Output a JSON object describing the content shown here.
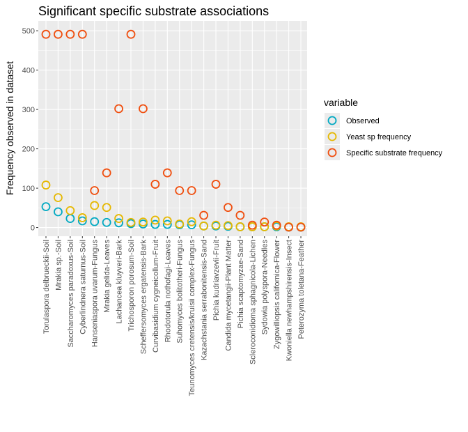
{
  "chart_data": {
    "type": "scatter",
    "title": "Significant specific substrate associations",
    "xlabel": "",
    "ylabel": "Frequency observed in dataset",
    "ylim": [
      -22,
      525
    ],
    "yticks": [
      0,
      100,
      200,
      300,
      400,
      500
    ],
    "grid": true,
    "legend_position": "right",
    "legend_title": "variable",
    "categories": [
      "Torulaspora delbrueckii-Soil",
      "Mrakia sp.-Soil",
      "Saccharomyces paradoxus-Soil",
      "Cyberlindnera saturnus-Soil",
      "Hanseniaspora uvarum-Fungus",
      "Mrakia gelida-Leaves",
      "Lachancea kluyveri-Bark",
      "Trichosporon porosum-Soil",
      "Scheffersomyces ergatensis-Bark",
      "Curvibasidium cygneicollum-Fruit",
      "Rhodotorula nothofagi-Leaves",
      "Suhomyces bolitotheri-Fungus",
      "Teunomyces cretensis/kruisii complex-Fungus",
      "Kazachstania serrabonitensis-Sand",
      "Pichia kudriavzevii-Fruit",
      "Candida mycetangii-Plant Matter",
      "Pichia scaptomyzae-Sand",
      "Scleroconidioma sphagnicola-Lichen",
      "Sydowia polyspora-Needles",
      "Zygowilliopsis californica-Flower",
      "Kwoniella newhampshirensis-Insect",
      "Peterozyma toletana-Feather"
    ],
    "series": [
      {
        "name": "Observed",
        "color": "#00a9c2",
        "values": [
          53,
          40,
          23,
          17,
          15,
          13,
          12,
          10,
          9,
          8,
          8,
          7,
          7,
          4,
          4,
          3,
          2,
          2,
          2,
          2,
          1,
          1
        ]
      },
      {
        "name": "Yeast sp frequency",
        "color": "#e6b800",
        "values": [
          108,
          76,
          43,
          25,
          56,
          51,
          23,
          13,
          14,
          19,
          17,
          9,
          15,
          4,
          6,
          5,
          2,
          2,
          2,
          4,
          2,
          2
        ]
      },
      {
        "name": "Specific substrate frequency",
        "color": "#f04e0e",
        "values": [
          491,
          491,
          491,
          491,
          94,
          139,
          302,
          491,
          302,
          110,
          139,
          94,
          94,
          31,
          110,
          51,
          31,
          6,
          14,
          6,
          1,
          1
        ]
      }
    ]
  }
}
